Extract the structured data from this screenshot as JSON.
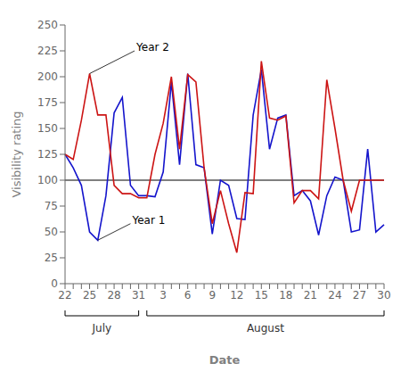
{
  "chart_data": {
    "type": "line",
    "title": "",
    "xlabel": "Date",
    "ylabel": "Visibility rating",
    "categories": [
      "22",
      null,
      null,
      "25",
      null,
      null,
      "28",
      null,
      null,
      "31",
      null,
      null,
      "3",
      null,
      null,
      "6",
      null,
      null,
      "9",
      null,
      null,
      "12",
      null,
      null,
      "15",
      null,
      null,
      "18",
      null,
      null,
      "21",
      null,
      null,
      "24",
      null,
      null,
      "27",
      null,
      null,
      "30"
    ],
    "series": [
      {
        "name": "Year 1",
        "color": "#1414CC",
        "values": [
          125,
          112,
          95,
          50,
          42,
          85,
          165,
          180,
          95,
          85,
          85,
          84,
          108,
          195,
          115,
          203,
          115,
          112,
          48,
          100,
          95,
          63,
          62,
          163,
          207,
          130,
          160,
          163,
          85,
          90,
          80,
          47,
          85,
          103,
          100,
          50,
          52,
          130,
          50,
          57
        ]
      },
      {
        "name": "Year 2",
        "color": "#CC1414",
        "values": [
          125,
          120,
          158,
          203,
          163,
          163,
          95,
          87,
          87,
          83,
          83,
          125,
          155,
          200,
          130,
          202,
          195,
          112,
          58,
          90,
          58,
          30,
          88,
          87,
          215,
          160,
          158,
          162,
          78,
          90,
          90,
          82,
          197,
          150,
          100,
          70,
          100,
          100,
          100,
          100
        ]
      }
    ],
    "ylim": [
      0,
      250
    ],
    "yticks": [
      0,
      25,
      50,
      75,
      100,
      125,
      150,
      175,
      200,
      225,
      250
    ],
    "grid": false,
    "reference_line_y": 100,
    "month_groups": [
      {
        "label": "July",
        "start": 0,
        "end": 9
      },
      {
        "label": "August",
        "start": 10,
        "end": 39
      }
    ],
    "annotations": [
      {
        "text": "Year 2",
        "x": 3,
        "y": 203,
        "text_x": 8.5,
        "text_y": 225
      },
      {
        "text": "Year 1",
        "x": 4,
        "y": 42,
        "text_x": 8,
        "text_y": 58
      }
    ]
  }
}
